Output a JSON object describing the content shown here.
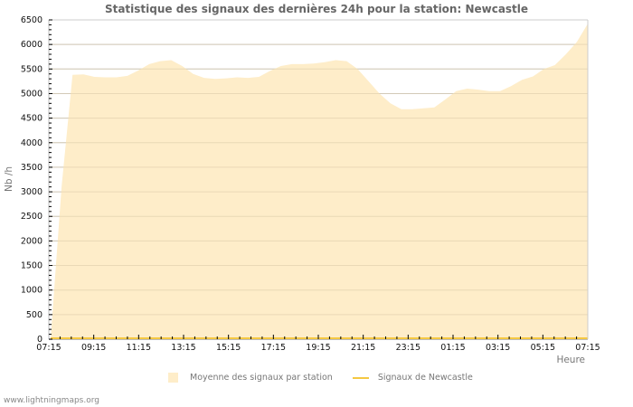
{
  "title": "Statistique des signaux des dernières 24h pour la station: Newcastle",
  "footer": "www.lightningmaps.org",
  "legend": {
    "area_label": "Moyenne des signaux par station",
    "line_label": "Signaux de Newcastle"
  },
  "colors": {
    "area_fill": "#feedc9",
    "line": "#f5c842",
    "grid": "#cccccc",
    "grid_inside": "#d9c8a6",
    "axis": "#bbbbbb"
  },
  "chart_data": {
    "type": "area",
    "title": "Statistique des signaux des dernières 24h pour la station: Newcastle",
    "xlabel": "Heure",
    "ylabel": "Nb /h",
    "ylim": [
      0,
      6500
    ],
    "yticks": [
      0,
      500,
      1000,
      1500,
      2000,
      2500,
      3000,
      3500,
      4000,
      4500,
      5000,
      5500,
      6000,
      6500
    ],
    "xticks": [
      "07:15",
      "09:15",
      "11:15",
      "13:15",
      "15:15",
      "17:15",
      "19:15",
      "21:15",
      "23:15",
      "01:15",
      "03:15",
      "05:15",
      "07:15"
    ],
    "grid": true,
    "legend_position": "bottom",
    "series": [
      {
        "name": "Moyenne des signaux par station",
        "type": "area",
        "x": [
          "07:15",
          "07:30",
          "07:45",
          "08:15",
          "08:45",
          "09:15",
          "09:45",
          "10:15",
          "10:45",
          "11:15",
          "11:45",
          "12:15",
          "12:45",
          "13:15",
          "13:45",
          "14:15",
          "14:45",
          "15:15",
          "15:45",
          "16:15",
          "16:45",
          "17:15",
          "17:45",
          "18:15",
          "18:45",
          "19:15",
          "19:45",
          "20:15",
          "20:45",
          "21:15",
          "21:45",
          "22:15",
          "22:45",
          "23:15",
          "23:45",
          "00:15",
          "00:45",
          "01:15",
          "01:45",
          "02:15",
          "02:45",
          "03:15",
          "03:45",
          "04:15",
          "04:45",
          "05:15",
          "05:45",
          "06:15",
          "06:45",
          "07:15"
        ],
        "values": [
          0,
          3100,
          5380,
          5390,
          5340,
          5330,
          5330,
          5360,
          5470,
          5600,
          5660,
          5680,
          5560,
          5400,
          5320,
          5300,
          5310,
          5330,
          5320,
          5340,
          5460,
          5560,
          5600,
          5600,
          5610,
          5640,
          5680,
          5660,
          5500,
          5250,
          5000,
          4800,
          4680,
          4680,
          4700,
          4720,
          4880,
          5050,
          5100,
          5080,
          5050,
          5050,
          5150,
          5280,
          5350,
          5500,
          5580,
          5800,
          6050,
          6420
        ]
      },
      {
        "name": "Signaux de Newcastle",
        "type": "line",
        "x": [
          "07:15",
          "07:15"
        ],
        "values": [
          0,
          0
        ]
      }
    ]
  }
}
